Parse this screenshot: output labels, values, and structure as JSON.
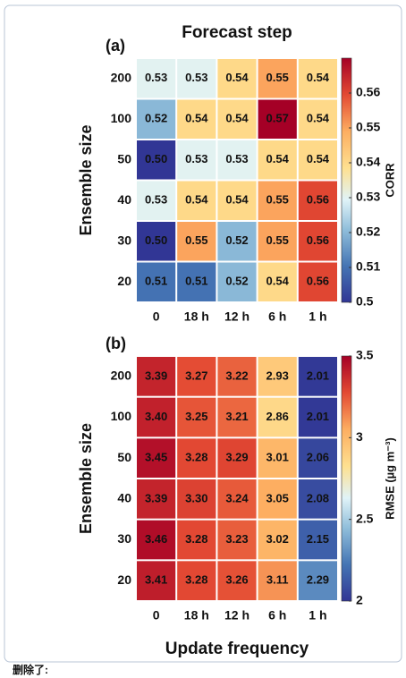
{
  "chart_data": [
    {
      "type": "heatmap",
      "title": "Forecast step",
      "label": "(a)",
      "ylabel": "Ensemble size",
      "colorbar_label": "CORR",
      "y_categories": [
        "200",
        "100",
        "50",
        "40",
        "30",
        "20"
      ],
      "x_categories": [
        "0",
        "18 h",
        "12 h",
        "6 h",
        "1 h"
      ],
      "values": [
        [
          0.53,
          0.53,
          0.54,
          0.55,
          0.54
        ],
        [
          0.52,
          0.54,
          0.54,
          0.57,
          0.54
        ],
        [
          0.5,
          0.53,
          0.53,
          0.54,
          0.54
        ],
        [
          0.53,
          0.54,
          0.54,
          0.55,
          0.56
        ],
        [
          0.5,
          0.55,
          0.52,
          0.55,
          0.56
        ],
        [
          0.51,
          0.51,
          0.52,
          0.54,
          0.56
        ]
      ],
      "value_labels": [
        [
          "0.53",
          "0.53",
          "0.54",
          "0.55",
          "0.54"
        ],
        [
          "0.52",
          "0.54",
          "0.54",
          "0.57",
          "0.54"
        ],
        [
          "0.50",
          "0.53",
          "0.53",
          "0.54",
          "0.54"
        ],
        [
          "0.53",
          "0.54",
          "0.54",
          "0.55",
          "0.56"
        ],
        [
          "0.50",
          "0.55",
          "0.52",
          "0.55",
          "0.56"
        ],
        [
          "0.51",
          "0.51",
          "0.52",
          "0.54",
          "0.56"
        ]
      ],
      "clim": [
        0.5,
        0.57
      ],
      "cticks": [
        0.5,
        0.51,
        0.52,
        0.53,
        0.54,
        0.55,
        0.56
      ]
    },
    {
      "type": "heatmap",
      "label": "(b)",
      "ylabel": "Ensemble size",
      "xlabel": "Update frequency",
      "colorbar_label": "RMSE (µg m⁻³)",
      "y_categories": [
        "200",
        "100",
        "50",
        "40",
        "30",
        "20"
      ],
      "x_categories": [
        "0",
        "18 h",
        "12 h",
        "6 h",
        "1 h"
      ],
      "values": [
        [
          3.39,
          3.27,
          3.22,
          2.93,
          2.01
        ],
        [
          3.4,
          3.25,
          3.21,
          2.86,
          2.01
        ],
        [
          3.45,
          3.28,
          3.29,
          3.01,
          2.06
        ],
        [
          3.39,
          3.3,
          3.24,
          3.05,
          2.08
        ],
        [
          3.46,
          3.28,
          3.23,
          3.02,
          2.15
        ],
        [
          3.41,
          3.28,
          3.26,
          3.11,
          2.29
        ]
      ],
      "value_labels": [
        [
          "3.39",
          "3.27",
          "3.22",
          "2.93",
          "2.01"
        ],
        [
          "3.40",
          "3.25",
          "3.21",
          "2.86",
          "2.01"
        ],
        [
          "3.45",
          "3.28",
          "3.29",
          "3.01",
          "2.06"
        ],
        [
          "3.39",
          "3.30",
          "3.24",
          "3.05",
          "2.08"
        ],
        [
          "3.46",
          "3.28",
          "3.23",
          "3.02",
          "2.15"
        ],
        [
          "3.41",
          "3.28",
          "3.26",
          "3.11",
          "2.29"
        ]
      ],
      "clim": [
        2,
        3.5
      ],
      "cticks": [
        2,
        2.5,
        3,
        3.5
      ]
    }
  ],
  "footer": "删除了:"
}
